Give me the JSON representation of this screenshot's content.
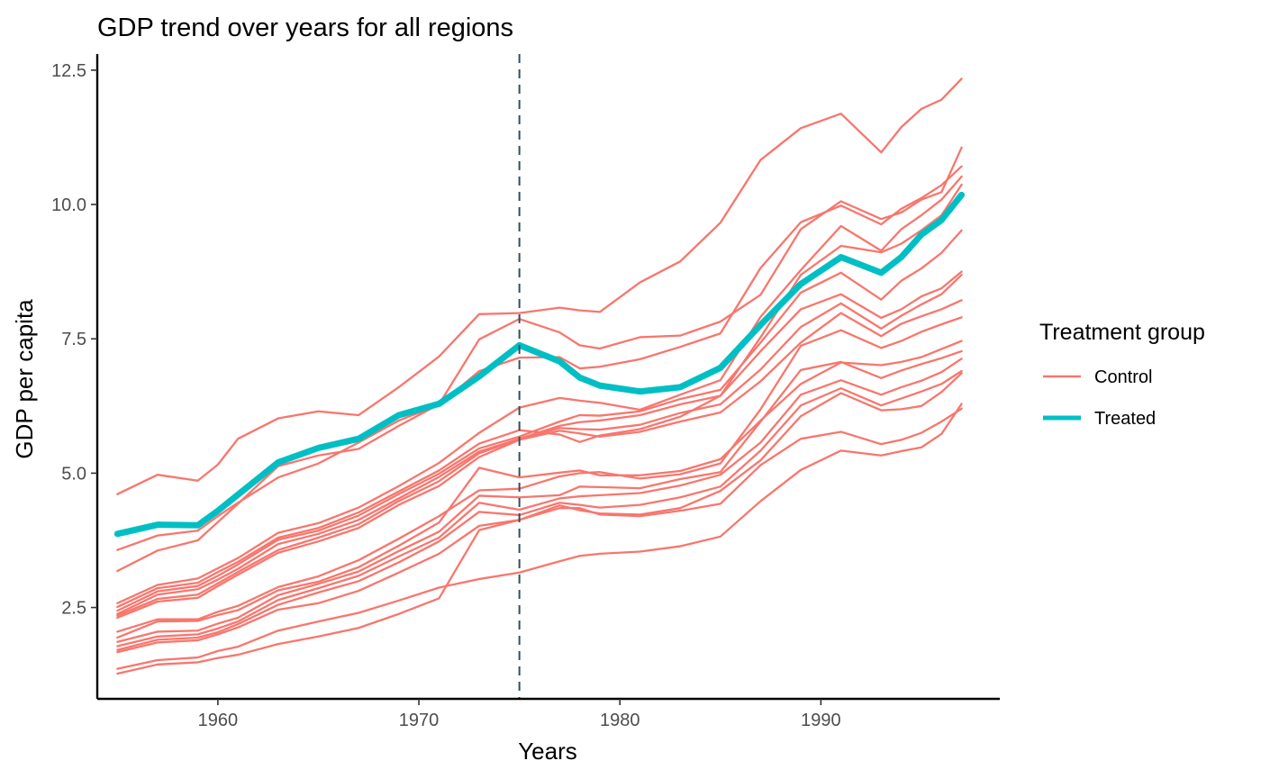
{
  "chart_data": {
    "type": "line",
    "title": "GDP trend over years for all regions",
    "xlabel": "Years",
    "ylabel": "GDP per capita",
    "xlim": [
      1954.0,
      1998.9
    ],
    "ylim": [
      0.8,
      12.8
    ],
    "x_ticks": [
      1960,
      1970,
      1980,
      1990
    ],
    "y_ticks": [
      2.5,
      5.0,
      7.5,
      10.0,
      12.5
    ],
    "y_tick_labels": [
      "2.5",
      "5.0",
      "7.5",
      "10.0",
      "12.5"
    ],
    "grid": false,
    "treatment_year": 1975,
    "legend": {
      "title": "Treatment group",
      "placement": "right",
      "items": [
        {
          "label": "Control",
          "color": "#F8766D"
        },
        {
          "label": "Treated",
          "color": "#00BFC4"
        }
      ]
    },
    "x": [
      1955,
      1957,
      1959,
      1960,
      1961,
      1963,
      1965,
      1967,
      1969,
      1971,
      1973,
      1975,
      1977,
      1978,
      1979,
      1981,
      1983,
      1985,
      1987,
      1989,
      1991,
      1993,
      1994,
      1995,
      1996,
      1997
    ],
    "treated_series": {
      "group": "Treated",
      "color": "#00BFC4",
      "values": [
        3.87,
        4.04,
        4.03,
        4.3,
        4.6,
        5.2,
        5.47,
        5.64,
        6.08,
        6.29,
        6.8,
        7.38,
        7.08,
        6.78,
        6.63,
        6.52,
        6.6,
        6.96,
        7.76,
        8.52,
        9.02,
        8.73,
        9.02,
        9.44,
        9.71,
        10.18
      ]
    },
    "control_series": [
      {
        "group": "Control",
        "values": [
          4.61,
          4.97,
          4.86,
          5.16,
          5.64,
          6.02,
          6.15,
          6.08,
          6.6,
          7.17,
          7.96,
          7.98,
          8.08,
          8.03,
          8.0,
          8.55,
          8.94,
          9.66,
          10.83,
          11.42,
          11.69,
          10.97,
          11.44,
          11.78,
          11.95,
          12.34
        ]
      },
      {
        "group": "Control",
        "values": [
          3.57,
          3.84,
          3.93,
          4.2,
          4.45,
          4.92,
          5.18,
          5.57,
          5.98,
          6.27,
          6.9,
          7.15,
          7.16,
          6.95,
          6.98,
          7.12,
          7.35,
          7.6,
          8.82,
          9.67,
          9.98,
          9.63,
          9.92,
          10.12,
          10.36,
          10.71
        ]
      },
      {
        "group": "Control",
        "values": [
          3.18,
          3.56,
          3.75,
          4.09,
          4.43,
          5.13,
          5.33,
          5.45,
          5.88,
          6.28,
          7.49,
          7.87,
          7.62,
          7.38,
          7.32,
          7.53,
          7.56,
          7.82,
          8.32,
          9.54,
          10.06,
          9.73,
          9.85,
          10.09,
          10.23,
          11.06
        ]
      },
      {
        "group": "Control",
        "values": [
          2.58,
          2.92,
          3.04,
          3.23,
          3.42,
          3.89,
          4.07,
          4.36,
          4.76,
          5.19,
          5.75,
          6.22,
          6.4,
          6.35,
          6.31,
          6.18,
          6.46,
          6.73,
          7.91,
          8.78,
          9.6,
          9.14,
          9.54,
          9.8,
          10.09,
          10.52
        ]
      },
      {
        "group": "Control",
        "values": [
          2.51,
          2.86,
          2.96,
          3.16,
          3.35,
          3.8,
          3.98,
          4.27,
          4.66,
          5.05,
          5.55,
          5.8,
          5.72,
          5.58,
          5.7,
          5.82,
          6.05,
          6.44,
          7.53,
          8.69,
          9.23,
          9.11,
          9.27,
          9.52,
          9.8,
          10.37
        ]
      },
      {
        "group": "Control",
        "values": [
          2.44,
          2.8,
          2.9,
          3.09,
          3.3,
          3.76,
          3.93,
          4.21,
          4.61,
          4.99,
          5.46,
          5.68,
          5.96,
          6.08,
          6.07,
          6.15,
          6.38,
          6.55,
          7.43,
          8.36,
          8.73,
          8.23,
          8.58,
          8.81,
          9.1,
          9.52
        ]
      },
      {
        "group": "Control",
        "values": [
          2.38,
          2.74,
          2.84,
          3.02,
          3.22,
          3.68,
          3.87,
          4.13,
          4.53,
          4.93,
          5.4,
          5.64,
          5.88,
          5.95,
          5.98,
          6.08,
          6.28,
          6.44,
          7.27,
          8.05,
          8.33,
          7.89,
          8.05,
          8.29,
          8.44,
          8.75
        ]
      },
      {
        "group": "Control",
        "values": [
          2.35,
          2.66,
          2.74,
          2.95,
          3.16,
          3.57,
          3.8,
          4.05,
          4.48,
          4.85,
          5.37,
          5.63,
          5.84,
          5.82,
          5.81,
          5.9,
          6.12,
          6.28,
          6.93,
          7.72,
          8.16,
          7.69,
          7.93,
          8.14,
          8.33,
          8.69
        ]
      },
      {
        "group": "Control",
        "values": [
          2.31,
          2.61,
          2.68,
          2.9,
          3.11,
          3.52,
          3.73,
          3.98,
          4.41,
          4.76,
          5.3,
          5.62,
          5.79,
          5.74,
          5.68,
          5.77,
          5.96,
          6.13,
          6.71,
          7.43,
          7.98,
          7.55,
          7.78,
          7.92,
          8.05,
          8.22
        ]
      },
      {
        "group": "Control",
        "values": [
          2.05,
          2.28,
          2.28,
          2.42,
          2.53,
          2.88,
          3.08,
          3.38,
          3.78,
          4.2,
          4.68,
          4.71,
          4.94,
          5.0,
          5.02,
          4.9,
          4.98,
          5.18,
          6.19,
          7.37,
          7.66,
          7.33,
          7.46,
          7.63,
          7.77,
          7.9
        ]
      },
      {
        "group": "Control",
        "values": [
          1.94,
          2.24,
          2.25,
          2.36,
          2.45,
          2.82,
          2.98,
          3.25,
          3.65,
          4.08,
          5.1,
          4.92,
          5.01,
          5.05,
          4.96,
          4.96,
          5.04,
          5.26,
          5.98,
          6.66,
          7.06,
          7.01,
          7.07,
          7.16,
          7.31,
          7.46
        ]
      },
      {
        "group": "Control",
        "values": [
          1.86,
          2.05,
          2.07,
          2.2,
          2.31,
          2.73,
          2.94,
          3.17,
          3.55,
          3.91,
          4.58,
          4.55,
          4.59,
          4.75,
          4.74,
          4.72,
          4.89,
          5.02,
          5.96,
          6.92,
          7.07,
          6.77,
          6.91,
          7.03,
          7.14,
          7.27
        ]
      },
      {
        "group": "Control",
        "values": [
          1.78,
          1.96,
          2.0,
          2.11,
          2.24,
          2.64,
          2.86,
          3.09,
          3.45,
          3.8,
          4.45,
          4.32,
          4.53,
          4.57,
          4.59,
          4.63,
          4.77,
          4.97,
          5.57,
          6.46,
          6.73,
          6.46,
          6.6,
          6.72,
          6.88,
          7.13
        ]
      },
      {
        "group": "Control",
        "values": [
          1.71,
          1.9,
          1.94,
          2.04,
          2.19,
          2.55,
          2.78,
          2.99,
          3.34,
          3.73,
          4.28,
          4.22,
          4.45,
          4.41,
          4.36,
          4.41,
          4.55,
          4.75,
          5.42,
          6.26,
          6.58,
          6.26,
          6.39,
          6.52,
          6.66,
          6.9
        ]
      },
      {
        "group": "Control",
        "values": [
          1.67,
          1.85,
          1.89,
          2.0,
          2.13,
          2.46,
          2.58,
          2.81,
          3.15,
          3.5,
          4.02,
          4.13,
          4.4,
          4.31,
          4.25,
          4.23,
          4.35,
          4.67,
          5.24,
          6.06,
          6.49,
          6.17,
          6.19,
          6.25,
          6.51,
          6.86
        ]
      },
      {
        "group": "Control",
        "values": [
          1.36,
          1.52,
          1.57,
          1.69,
          1.77,
          2.07,
          2.24,
          2.4,
          2.63,
          2.87,
          3.03,
          3.15,
          3.36,
          3.46,
          3.5,
          3.54,
          3.64,
          3.82,
          4.48,
          5.06,
          5.42,
          5.33,
          5.41,
          5.48,
          5.73,
          6.29
        ]
      },
      {
        "group": "Control",
        "values": [
          1.27,
          1.44,
          1.48,
          1.56,
          1.62,
          1.82,
          1.96,
          2.12,
          2.38,
          2.67,
          3.94,
          4.13,
          4.35,
          4.35,
          4.23,
          4.2,
          4.3,
          4.43,
          5.15,
          5.64,
          5.77,
          5.54,
          5.62,
          5.75,
          5.96,
          6.2
        ]
      }
    ]
  }
}
